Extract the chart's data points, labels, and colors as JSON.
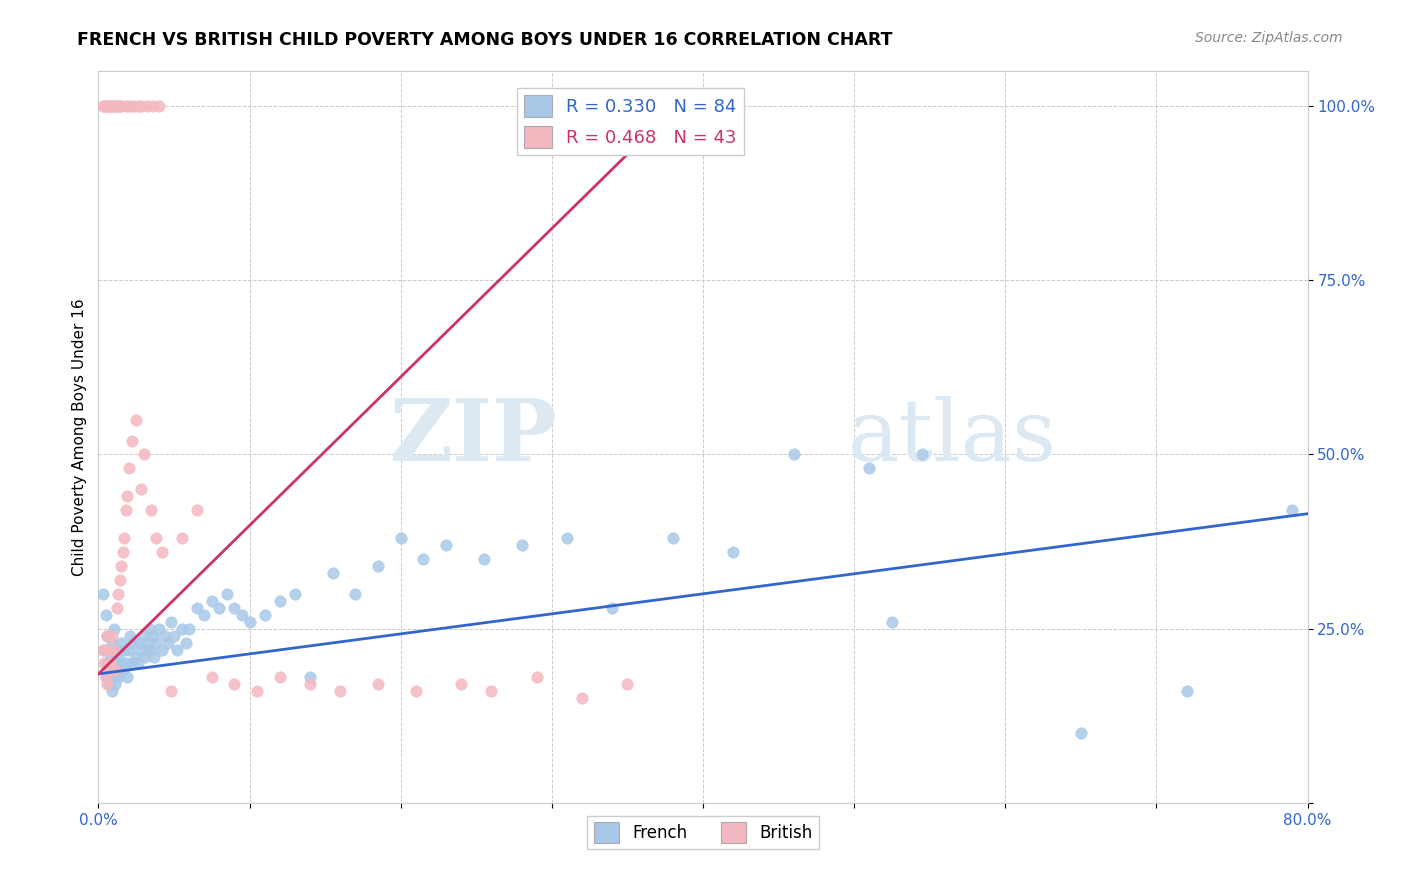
{
  "title": "FRENCH VS BRITISH CHILD POVERTY AMONG BOYS UNDER 16 CORRELATION CHART",
  "source": "Source: ZipAtlas.com",
  "ylabel": "Child Poverty Among Boys Under 16",
  "xlim": [
    0.0,
    0.8
  ],
  "ylim": [
    0.0,
    1.05
  ],
  "yticks": [
    0.0,
    0.25,
    0.5,
    0.75,
    1.0
  ],
  "yticklabels": [
    "",
    "25.0%",
    "50.0%",
    "75.0%",
    "100.0%"
  ],
  "xticks": [
    0.0,
    0.1,
    0.2,
    0.3,
    0.4,
    0.5,
    0.6,
    0.7,
    0.8
  ],
  "xticklabels": [
    "0.0%",
    "",
    "",
    "",
    "",
    "",
    "",
    "",
    "80.0%"
  ],
  "french_color": "#a8c8e8",
  "british_color": "#f4b8c0",
  "french_line_color": "#3366cc",
  "british_line_color": "#cc3366",
  "tick_color": "#3366cc",
  "legend_french_R": "0.330",
  "legend_french_N": "84",
  "legend_british_R": "0.468",
  "legend_british_N": "43",
  "watermark_zip": "ZIP",
  "watermark_atlas": "atlas",
  "french_line_x0": 0.0,
  "french_line_y0": 0.185,
  "french_line_x1": 0.8,
  "french_line_y1": 0.415,
  "british_line_x0": 0.0,
  "british_line_y0": 0.185,
  "british_line_x1": 0.38,
  "british_line_y1": 0.995,
  "french_scatter_x": [
    0.003,
    0.004,
    0.005,
    0.005,
    0.006,
    0.006,
    0.007,
    0.007,
    0.008,
    0.008,
    0.009,
    0.009,
    0.01,
    0.01,
    0.011,
    0.011,
    0.012,
    0.012,
    0.013,
    0.013,
    0.014,
    0.015,
    0.016,
    0.017,
    0.018,
    0.019,
    0.02,
    0.021,
    0.022,
    0.023,
    0.025,
    0.026,
    0.027,
    0.028,
    0.03,
    0.031,
    0.032,
    0.033,
    0.034,
    0.035,
    0.036,
    0.037,
    0.038,
    0.04,
    0.042,
    0.044,
    0.046,
    0.048,
    0.05,
    0.052,
    0.055,
    0.058,
    0.06,
    0.065,
    0.07,
    0.075,
    0.08,
    0.085,
    0.09,
    0.095,
    0.1,
    0.11,
    0.12,
    0.13,
    0.14,
    0.155,
    0.17,
    0.185,
    0.2,
    0.215,
    0.23,
    0.255,
    0.28,
    0.31,
    0.34,
    0.38,
    0.42,
    0.46,
    0.51,
    0.525,
    0.545,
    0.65,
    0.72,
    0.79
  ],
  "french_scatter_y": [
    0.3,
    0.22,
    0.27,
    0.18,
    0.2,
    0.24,
    0.17,
    0.22,
    0.19,
    0.21,
    0.16,
    0.23,
    0.18,
    0.25,
    0.2,
    0.17,
    0.22,
    0.19,
    0.18,
    0.21,
    0.2,
    0.23,
    0.19,
    0.22,
    0.2,
    0.18,
    0.22,
    0.24,
    0.2,
    0.23,
    0.21,
    0.2,
    0.23,
    0.22,
    0.24,
    0.21,
    0.23,
    0.22,
    0.25,
    0.22,
    0.24,
    0.21,
    0.23,
    0.25,
    0.22,
    0.24,
    0.23,
    0.26,
    0.24,
    0.22,
    0.25,
    0.23,
    0.25,
    0.28,
    0.27,
    0.29,
    0.28,
    0.3,
    0.28,
    0.27,
    0.26,
    0.27,
    0.29,
    0.3,
    0.18,
    0.33,
    0.3,
    0.34,
    0.38,
    0.35,
    0.37,
    0.35,
    0.37,
    0.38,
    0.28,
    0.38,
    0.36,
    0.5,
    0.48,
    0.26,
    0.5,
    0.1,
    0.16,
    0.42
  ],
  "british_scatter_x": [
    0.003,
    0.004,
    0.005,
    0.006,
    0.006,
    0.007,
    0.007,
    0.008,
    0.009,
    0.01,
    0.011,
    0.012,
    0.013,
    0.014,
    0.015,
    0.016,
    0.017,
    0.018,
    0.019,
    0.02,
    0.022,
    0.025,
    0.028,
    0.03,
    0.035,
    0.038,
    0.042,
    0.048,
    0.055,
    0.065,
    0.075,
    0.09,
    0.105,
    0.12,
    0.14,
    0.16,
    0.185,
    0.21,
    0.24,
    0.26,
    0.29,
    0.32,
    0.35
  ],
  "british_scatter_y": [
    0.22,
    0.2,
    0.18,
    0.24,
    0.17,
    0.22,
    0.19,
    0.2,
    0.24,
    0.22,
    0.19,
    0.28,
    0.3,
    0.32,
    0.34,
    0.36,
    0.38,
    0.42,
    0.44,
    0.48,
    0.52,
    0.55,
    0.45,
    0.5,
    0.42,
    0.38,
    0.36,
    0.16,
    0.38,
    0.42,
    0.18,
    0.17,
    0.16,
    0.18,
    0.17,
    0.16,
    0.17,
    0.16,
    0.17,
    0.16,
    0.18,
    0.15,
    0.17
  ],
  "british_top_x": [
    0.003,
    0.004,
    0.005,
    0.006,
    0.007,
    0.008,
    0.009,
    0.01,
    0.011,
    0.012,
    0.013,
    0.014,
    0.015,
    0.018,
    0.02,
    0.023,
    0.026,
    0.028,
    0.032,
    0.036,
    0.04
  ],
  "british_top_y": [
    1.0,
    1.0,
    1.0,
    1.0,
    1.0,
    1.0,
    1.0,
    1.0,
    1.0,
    1.0,
    1.0,
    1.0,
    1.0,
    1.0,
    1.0,
    1.0,
    1.0,
    1.0,
    1.0,
    1.0,
    1.0
  ]
}
